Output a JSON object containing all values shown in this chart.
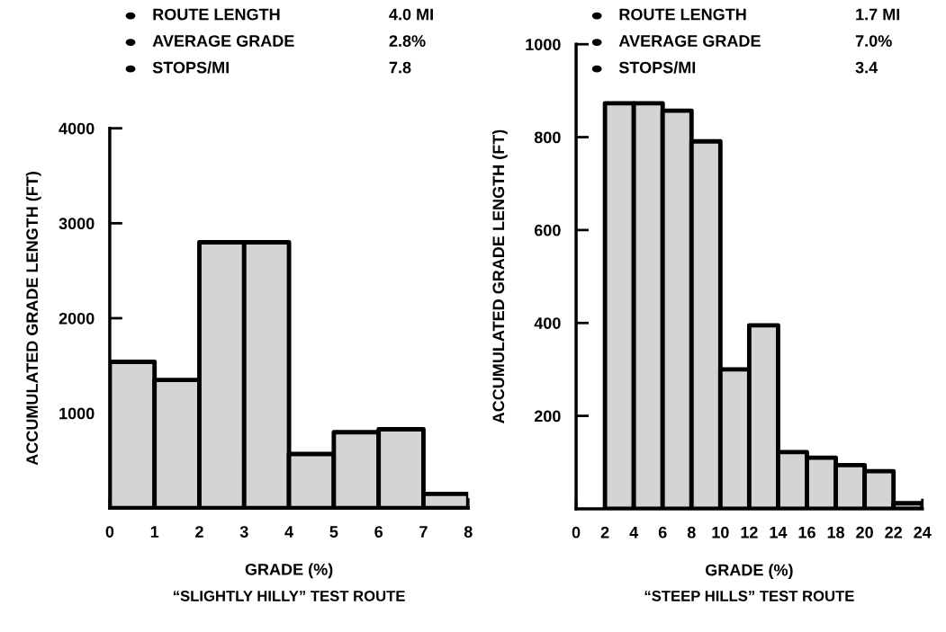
{
  "chart_data": [
    {
      "type": "histogram",
      "title": "“SLIGHTLY HILLY” TEST ROUTE",
      "xlabel": "GRADE (%)",
      "ylabel": "ACCUMULATED GRADE LENGTH (FT)",
      "annotations": [
        "ROUTE LENGTH",
        "4.0 MI",
        "AVERAGE GRADE",
        "2.8%",
        "STOPS/MI",
        "7.8"
      ],
      "bins": [
        0,
        1,
        2,
        3,
        4,
        5,
        6,
        7,
        8
      ],
      "values": [
        1540,
        1350,
        2800,
        2800,
        570,
        800,
        830,
        150
      ],
      "color": "#d4d4d4",
      "xlim": [
        0,
        8
      ],
      "xticks": [
        0,
        1,
        2,
        3,
        4,
        5,
        6,
        7,
        8
      ],
      "ylim": [
        0,
        4000
      ],
      "yticks": [
        1000,
        2000,
        3000,
        4000
      ],
      "grid": false
    },
    {
      "type": "histogram",
      "title": "“STEEP HILLS” TEST ROUTE",
      "xlabel": "GRADE (%)",
      "ylabel": "ACCUMULATED GRADE LENGTH (FT)",
      "annotations": [
        "ROUTE LENGTH",
        "1.7 MI",
        "AVERAGE GRADE",
        "7.0%",
        "STOPS/MI",
        "3.4"
      ],
      "bins": [
        2,
        4,
        6,
        8,
        10,
        12,
        14,
        16,
        18,
        20,
        22,
        24
      ],
      "values": [
        873,
        873,
        857,
        791,
        300,
        395,
        122,
        110,
        94,
        81,
        12
      ],
      "color": "#d4d4d4",
      "xlim": [
        0,
        24
      ],
      "xticks": [
        0,
        2,
        4,
        6,
        8,
        10,
        12,
        14,
        16,
        18,
        20,
        22,
        24
      ],
      "ylim": [
        0,
        1000
      ],
      "yticks": [
        200,
        400,
        600,
        800,
        1000
      ],
      "grid": false
    }
  ]
}
